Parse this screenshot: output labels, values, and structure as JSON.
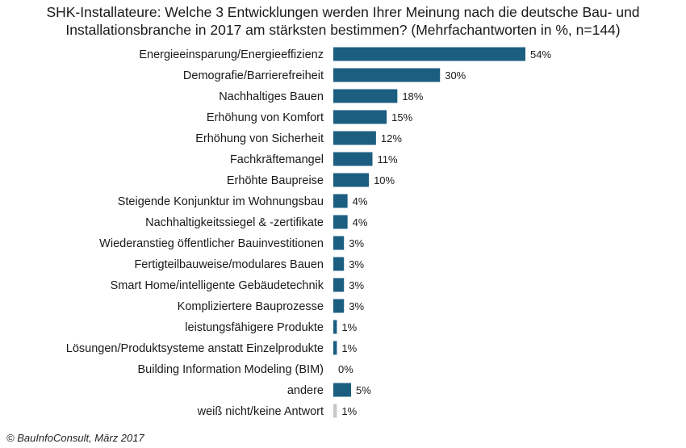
{
  "title": "SHK-Installateure: Welche 3 Entwicklungen  werden Ihrer Meinung nach die deutsche Bau- und Installationsbranche  in 2017 am stärksten bestimmen? (Mehrfachantworten in %, n=144)",
  "source": "© BauInfoConsult, März 2017",
  "colors": {
    "bar": "#1b5e80",
    "bar_muted": "#c8c8c8"
  },
  "chart_data": {
    "type": "bar",
    "orientation": "horizontal",
    "title": "SHK-Installateure: Welche 3 Entwicklungen  werden Ihrer Meinung nach die deutsche Bau- und Installationsbranche  in 2017 am stärksten bestimmen? (Mehrfachantworten in %, n=144)",
    "unit": "%",
    "categories": [
      "Energieeinsparung/Energieeffizienz",
      "Demografie/Barrierefreiheit",
      "Nachhaltiges Bauen",
      "Erhöhung von Komfort",
      "Erhöhung von Sicherheit",
      "Fachkräftemangel",
      "Erhöhte Baupreise",
      "Steigende Konjunktur im Wohnungsbau",
      "Nachhaltigkeitssiegel & -zertifikate",
      "Wiederanstieg öffentlicher Bauinvestitionen",
      "Fertigteilbauweise/modulares Bauen",
      "Smart Home/intelligente Gebäudetechnik",
      "Kompliziertere Bauprozesse",
      "leistungsfähigere Produkte",
      "Lösungen/Produktsysteme anstatt Einzelprodukte",
      "Building Information Modeling (BIM)",
      "andere",
      "weiß nicht/keine Antwort"
    ],
    "values": [
      54,
      30,
      18,
      15,
      12,
      11,
      10,
      4,
      4,
      3,
      3,
      3,
      3,
      1,
      1,
      0,
      5,
      1
    ],
    "data_labels": [
      "54%",
      "30%",
      "18%",
      "15%",
      "12%",
      "11%",
      "10%",
      "4%",
      "4%",
      "3%",
      "3%",
      "3%",
      "3%",
      "1%",
      "1%",
      "0%",
      "5%",
      "1%"
    ],
    "muted_categories": [
      "weiß nicht/keine Antwort"
    ],
    "xlim": [
      0,
      54
    ],
    "grid": false,
    "legend": "none"
  }
}
